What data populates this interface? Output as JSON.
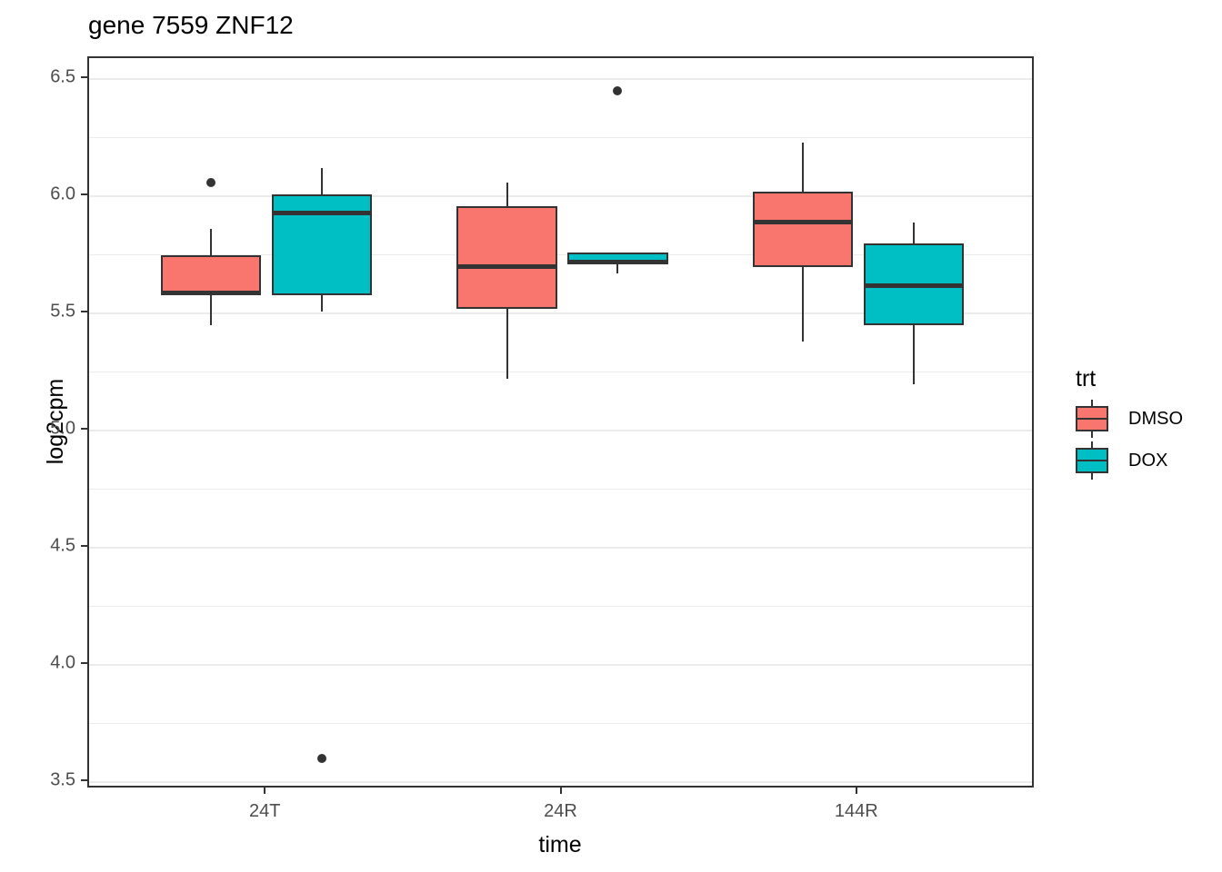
{
  "chart_data": {
    "type": "boxplot",
    "title": "gene 7559 ZNF12",
    "xlabel": "time",
    "ylabel": "log2cpm",
    "categories": [
      "24T",
      "24R",
      "144R"
    ],
    "ylim": [
      3.47,
      6.59
    ],
    "yticks_major": [
      3.5,
      4.0,
      4.5,
      5.0,
      5.5,
      6.0,
      6.5
    ],
    "ytick_labels": [
      "3.5",
      "4.0",
      "4.5",
      "5.0",
      "5.5",
      "6.0",
      "6.5"
    ],
    "yticks_minor": [
      3.75,
      4.25,
      4.75,
      5.25,
      5.75,
      6.25
    ],
    "grid": true,
    "legend": {
      "title": "trt",
      "position": "right",
      "entries": [
        {
          "label": "DMSO",
          "color": "#F8766D"
        },
        {
          "label": "DOX",
          "color": "#00BFC4"
        }
      ]
    },
    "colors": {
      "stroke": "#333333",
      "gridline": "#ebebeb",
      "tick_text": "#4d4d4d",
      "dmso_fill": "#F8766D",
      "dox_fill": "#00BFC4"
    },
    "series": [
      {
        "name": "DMSO",
        "color": "#F8766D",
        "boxes": [
          {
            "category": "24T",
            "whisker_low": 5.45,
            "q1": 5.58,
            "median": 5.59,
            "q3": 5.75,
            "whisker_high": 5.86,
            "outliers": [
              6.06
            ]
          },
          {
            "category": "24R",
            "whisker_low": 5.22,
            "q1": 5.52,
            "median": 5.7,
            "q3": 5.96,
            "whisker_high": 6.06,
            "outliers": []
          },
          {
            "category": "144R",
            "whisker_low": 5.38,
            "q1": 5.7,
            "median": 5.89,
            "q3": 6.02,
            "whisker_high": 6.23,
            "outliers": []
          }
        ]
      },
      {
        "name": "DOX",
        "color": "#00BFC4",
        "boxes": [
          {
            "category": "24T",
            "whisker_low": 5.51,
            "q1": 5.58,
            "median": 5.93,
            "q3": 6.01,
            "whisker_high": 6.12,
            "outliers": [
              3.6
            ]
          },
          {
            "category": "24R",
            "whisker_low": 5.67,
            "q1": 5.71,
            "median": 5.72,
            "q3": 5.76,
            "whisker_high": 5.76,
            "outliers": [
              6.45
            ]
          },
          {
            "category": "144R",
            "whisker_low": 5.2,
            "q1": 5.45,
            "median": 5.62,
            "q3": 5.8,
            "whisker_high": 5.89,
            "outliers": []
          }
        ]
      }
    ],
    "layout": {
      "x_unit_range": [
        0.4,
        3.6
      ],
      "group_centers": [
        1,
        2,
        3
      ],
      "dodge_offset": 0.1875,
      "box_width_units": 0.34
    }
  }
}
